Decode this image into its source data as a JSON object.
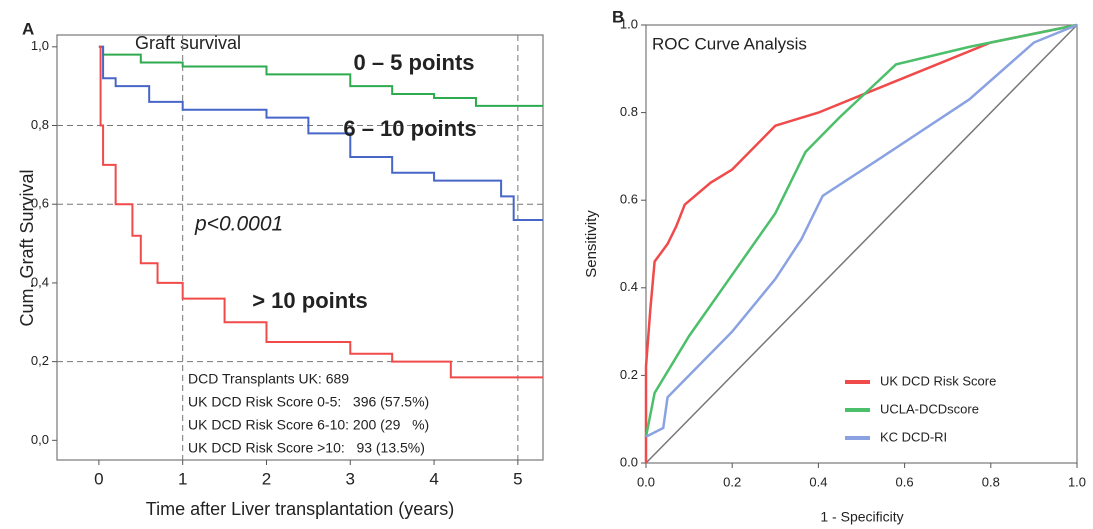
{
  "chart_data": [
    {
      "type": "line",
      "panel_label": "A",
      "title": "Graft survival",
      "x_label": "Time after Liver transplantation (years)",
      "y_label": "Cum. Graft Survival",
      "xlim": [
        -0.5,
        5.3
      ],
      "ylim": [
        -0.05,
        1.03
      ],
      "xticks": [
        0,
        1,
        2,
        3,
        4,
        5
      ],
      "yticks": [
        {
          "value": 0,
          "label": "0,0"
        },
        {
          "value": 0.2,
          "label": "0,2"
        },
        {
          "value": 0.4,
          "label": "0,4"
        },
        {
          "value": 0.6,
          "label": "0,6"
        },
        {
          "value": 0.8,
          "label": "0,8"
        },
        {
          "value": 1,
          "label": "1,0"
        }
      ],
      "ref_x": [
        1,
        5
      ],
      "ref_y": [
        0.2,
        0.6,
        0.8
      ],
      "annotation": "p<0.0001",
      "info_box": [
        "DCD Transplants UK: 689",
        "UK DCD Risk Score 0-5:   396 (57.5%)",
        "UK DCD Risk Score 6-10: 200 (29   %)",
        "UK DCD Risk Score >10:   93 (13.5%)"
      ],
      "series": [
        {
          "name": "0 – 5 points",
          "color": "#2eaa4f",
          "x": [
            0,
            0.05,
            0.05,
            0.5,
            0.5,
            1,
            1,
            2,
            2,
            3,
            3,
            3.5,
            3.5,
            4,
            4,
            4.5,
            4.5,
            5.3
          ],
          "values": [
            1,
            1,
            0.98,
            0.98,
            0.96,
            0.96,
            0.95,
            0.95,
            0.93,
            0.93,
            0.9,
            0.9,
            0.88,
            0.88,
            0.87,
            0.87,
            0.85,
            0.85
          ]
        },
        {
          "name": "6 – 10 points",
          "color": "#4766c7",
          "x": [
            0,
            0.05,
            0.05,
            0.2,
            0.2,
            0.6,
            0.6,
            1,
            1,
            2,
            2,
            2.5,
            2.5,
            3,
            3,
            3.5,
            3.5,
            4,
            4,
            4.8,
            4.8,
            4.95,
            4.95,
            5.3
          ],
          "values": [
            1,
            1,
            0.92,
            0.92,
            0.9,
            0.9,
            0.86,
            0.86,
            0.84,
            0.84,
            0.82,
            0.82,
            0.78,
            0.78,
            0.72,
            0.72,
            0.68,
            0.68,
            0.66,
            0.66,
            0.62,
            0.62,
            0.56,
            0.56
          ]
        },
        {
          "name": "> 10 points",
          "color": "#f04a4a",
          "x": [
            0,
            0.02,
            0.02,
            0.05,
            0.05,
            0.2,
            0.2,
            0.4,
            0.4,
            0.5,
            0.5,
            0.7,
            0.7,
            1,
            1,
            1.5,
            1.5,
            2,
            2,
            3,
            3,
            3.5,
            3.5,
            4.2,
            4.2,
            5.3
          ],
          "values": [
            1,
            1,
            0.8,
            0.8,
            0.7,
            0.7,
            0.6,
            0.6,
            0.52,
            0.52,
            0.45,
            0.45,
            0.4,
            0.4,
            0.36,
            0.36,
            0.3,
            0.3,
            0.25,
            0.25,
            0.22,
            0.22,
            0.2,
            0.2,
            0.16,
            0.16
          ]
        }
      ]
    },
    {
      "type": "line",
      "panel_label": "B",
      "title": "ROC Curve Analysis",
      "x_label": "1 - Specificity",
      "y_label": "Sensitivity",
      "xlim": [
        0,
        1
      ],
      "ylim": [
        0,
        1
      ],
      "xticks": [
        {
          "value": 0,
          "label": "0.0"
        },
        0.2,
        0.4,
        0.6,
        0.8,
        {
          "value": 1,
          "label": "1.0"
        }
      ],
      "yticks": [
        {
          "value": 0,
          "label": "0.0"
        },
        0.2,
        0.4,
        0.6,
        0.8,
        {
          "value": 1,
          "label": "1.0"
        }
      ],
      "diagonal": true,
      "legend": "lower right",
      "series": [
        {
          "name": "UK DCD Risk Score",
          "color": "#f04a4a",
          "x": [
            0,
            0,
            0.01,
            0.02,
            0.05,
            0.07,
            0.09,
            0.15,
            0.2,
            0.3,
            0.4,
            0.5,
            0.6,
            0.7,
            0.8,
            0.9,
            1
          ],
          "values": [
            0,
            0.22,
            0.35,
            0.46,
            0.5,
            0.54,
            0.59,
            0.64,
            0.67,
            0.77,
            0.8,
            0.84,
            0.88,
            0.92,
            0.96,
            0.98,
            1
          ]
        },
        {
          "name": "UCLA-DCDscore",
          "color": "#4cbf6a",
          "x": [
            0,
            0.02,
            0.1,
            0.2,
            0.3,
            0.37,
            0.45,
            0.58,
            0.75,
            0.9,
            1
          ],
          "values": [
            0.06,
            0.16,
            0.29,
            0.43,
            0.57,
            0.71,
            0.79,
            0.91,
            0.95,
            0.98,
            1
          ]
        },
        {
          "name": "KC DCD-RI",
          "color": "#8aa2e2",
          "x": [
            0,
            0.04,
            0.05,
            0.1,
            0.2,
            0.3,
            0.36,
            0.41,
            0.55,
            0.75,
            0.9,
            1
          ],
          "values": [
            0.06,
            0.08,
            0.15,
            0.2,
            0.3,
            0.42,
            0.51,
            0.61,
            0.7,
            0.83,
            0.96,
            1
          ]
        }
      ]
    }
  ]
}
